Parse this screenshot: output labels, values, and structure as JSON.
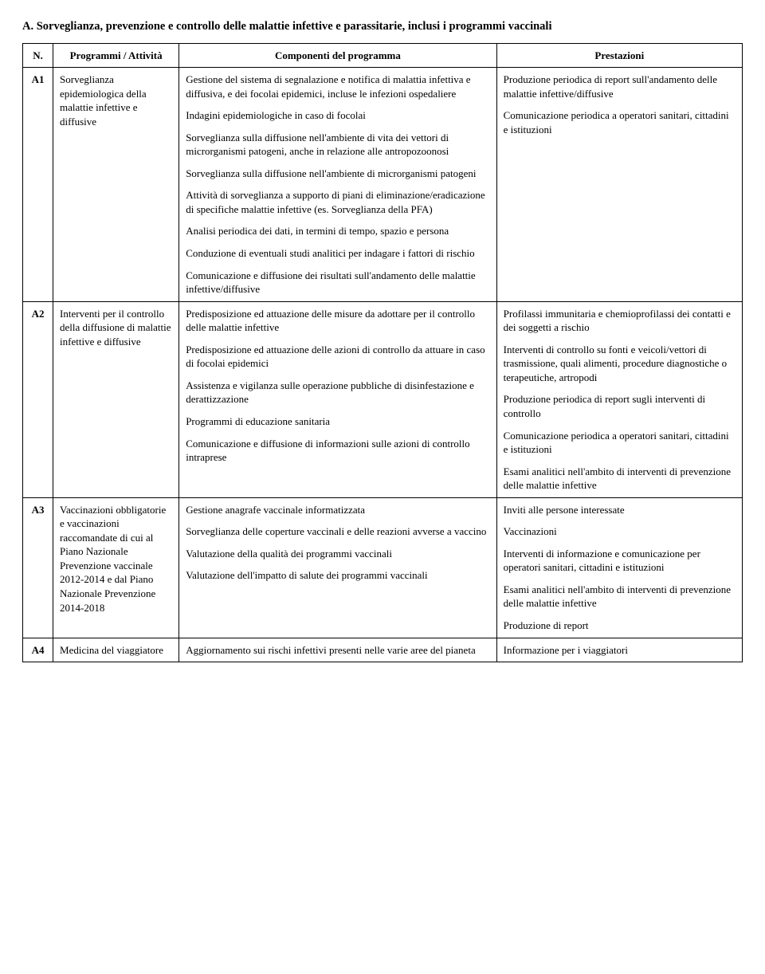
{
  "section_title": "A. Sorveglianza, prevenzione e controllo delle malattie infettive e parassitarie, inclusi i programmi vaccinali",
  "headers": {
    "num": "N.",
    "prog": "Programmi / Attività",
    "comp": "Componenti del programma",
    "prest": "Prestazioni"
  },
  "rows": [
    {
      "num": "A1",
      "prog": "Sorveglianza epidemiologica della malattie infettive e diffusive",
      "comp": [
        "Gestione del sistema di segnalazione e notifica di malattia infettiva e diffusiva, e dei focolai epidemici, incluse le infezioni ospedaliere",
        "Indagini epidemiologiche in caso di focolai",
        "Sorveglianza sulla diffusione nell'ambiente di vita dei vettori di microrganismi patogeni, anche in relazione alle antropozoonosi",
        "Sorveglianza sulla diffusione nell'ambiente di microrganismi patogeni",
        "Attività di sorveglianza a supporto di piani di eliminazione/eradicazione di specifiche malattie infettive (es. Sorveglianza della PFA)",
        "Analisi periodica dei dati, in termini di tempo, spazio e persona",
        "Conduzione di eventuali studi analitici per indagare i fattori di rischio",
        "Comunicazione e diffusione dei risultati sull'andamento delle malattie infettive/diffusive"
      ],
      "prest": [
        "Produzione periodica di report sull'andamento delle malattie infettive/diffusive",
        "Comunicazione periodica a operatori sanitari, cittadini e istituzioni"
      ]
    },
    {
      "num": "A2",
      "prog": "Interventi per il controllo della diffusione di malattie infettive e diffusive",
      "comp": [
        "Predisposizione ed attuazione delle misure da adottare per il controllo delle malattie infettive",
        "Predisposizione ed attuazione delle azioni di controllo da attuare in caso di focolai epidemici",
        "Assistenza e vigilanza sulle operazione pubbliche di disinfestazione e derattizzazione",
        "Programmi di educazione sanitaria",
        "Comunicazione e diffusione di informazioni sulle azioni di controllo intraprese"
      ],
      "prest": [
        "Profilassi immunitaria e chemioprofilassi dei contatti e dei soggetti a rischio",
        "Interventi di controllo su fonti e veicoli/vettori di trasmissione, quali alimenti, procedure diagnostiche o terapeutiche, artropodi",
        "Produzione periodica di report sugli interventi di controllo",
        "Comunicazione periodica a operatori sanitari, cittadini e istituzioni",
        "Esami analitici nell'ambito di interventi di prevenzione delle malattie infettive"
      ]
    },
    {
      "num": "A3",
      "prog": "Vaccinazioni obbligatorie e vaccinazioni raccomandate di cui al Piano Nazionale Prevenzione vaccinale 2012-2014 e dal Piano Nazionale Prevenzione 2014-2018",
      "comp": [
        "Gestione anagrafe vaccinale informatizzata",
        "Sorveglianza delle coperture vaccinali e delle reazioni avverse a vaccino",
        "Valutazione della qualità dei programmi vaccinali",
        "Valutazione dell'impatto di salute dei programmi vaccinali"
      ],
      "prest": [
        "Inviti alle persone interessate",
        "Vaccinazioni",
        "Interventi di informazione e comunicazione per operatori sanitari, cittadini e istituzioni",
        "Esami analitici nell'ambito di interventi di prevenzione delle malattie infettive",
        "Produzione di report"
      ]
    },
    {
      "num": "A4",
      "prog": "Medicina del viaggiatore",
      "comp": [
        "Aggiornamento sui rischi infettivi presenti nelle varie aree del pianeta"
      ],
      "prest": [
        "Informazione per i viaggiatori"
      ]
    }
  ]
}
